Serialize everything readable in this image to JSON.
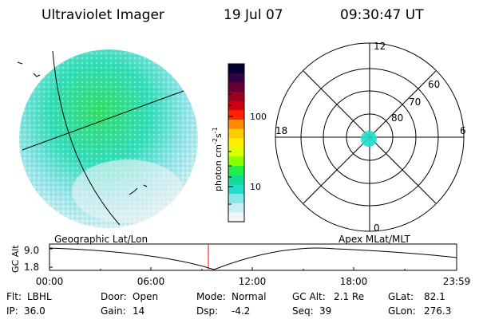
{
  "header": {
    "title": "Ultraviolet Imager",
    "date": "19 Jul 07",
    "time": "09:30:47 UT"
  },
  "globe_panel": {
    "projection_label": "Geographic Lat/Lon"
  },
  "colorbar": {
    "unit_prefix": "photon cm",
    "unit_exp1": "-2",
    "unit_mid": "s",
    "unit_exp2": "-1",
    "ticks": [
      "100",
      "10"
    ],
    "colors": [
      "#000033",
      "#330044",
      "#660033",
      "#990022",
      "#cc0011",
      "#ff2200",
      "#ff8800",
      "#ffcc00",
      "#ffee00",
      "#ddff00",
      "#88ff00",
      "#22ee44",
      "#11dd99",
      "#22ddcc",
      "#88e6ea",
      "#c8eef2",
      "#f0f6f8"
    ]
  },
  "polar_plot": {
    "mlt_labels": {
      "top": "12",
      "right": "6",
      "bottom": "0",
      "left": "18"
    },
    "lat_labels": [
      "60",
      "70",
      "80"
    ],
    "label": "Apex MLat/MLT"
  },
  "altitude_plot": {
    "ylabel": "GC Alt",
    "y_ticks": [
      "9.0",
      "1.8"
    ],
    "x_ticks": [
      "00:00",
      "06:00",
      "12:00",
      "18:00",
      "23:59"
    ],
    "marker_color": "#ff0000"
  },
  "status": {
    "row1": [
      {
        "label": "Flt:",
        "value": "LBHL"
      },
      {
        "label": "Door:",
        "value": "Open"
      },
      {
        "label": "Mode:",
        "value": "Normal"
      },
      {
        "label": "GC Alt:",
        "value": "2.1 Re"
      },
      {
        "label": "GLat:",
        "value": "82.1"
      }
    ],
    "row2": [
      {
        "label": "IP:",
        "value": "36.0"
      },
      {
        "label": "Gain:",
        "value": "14"
      },
      {
        "label": "Dsp:",
        "value": "-4.2"
      },
      {
        "label": "Seq:",
        "value": "39"
      },
      {
        "label": "GLon:",
        "value": "276.3"
      }
    ]
  }
}
